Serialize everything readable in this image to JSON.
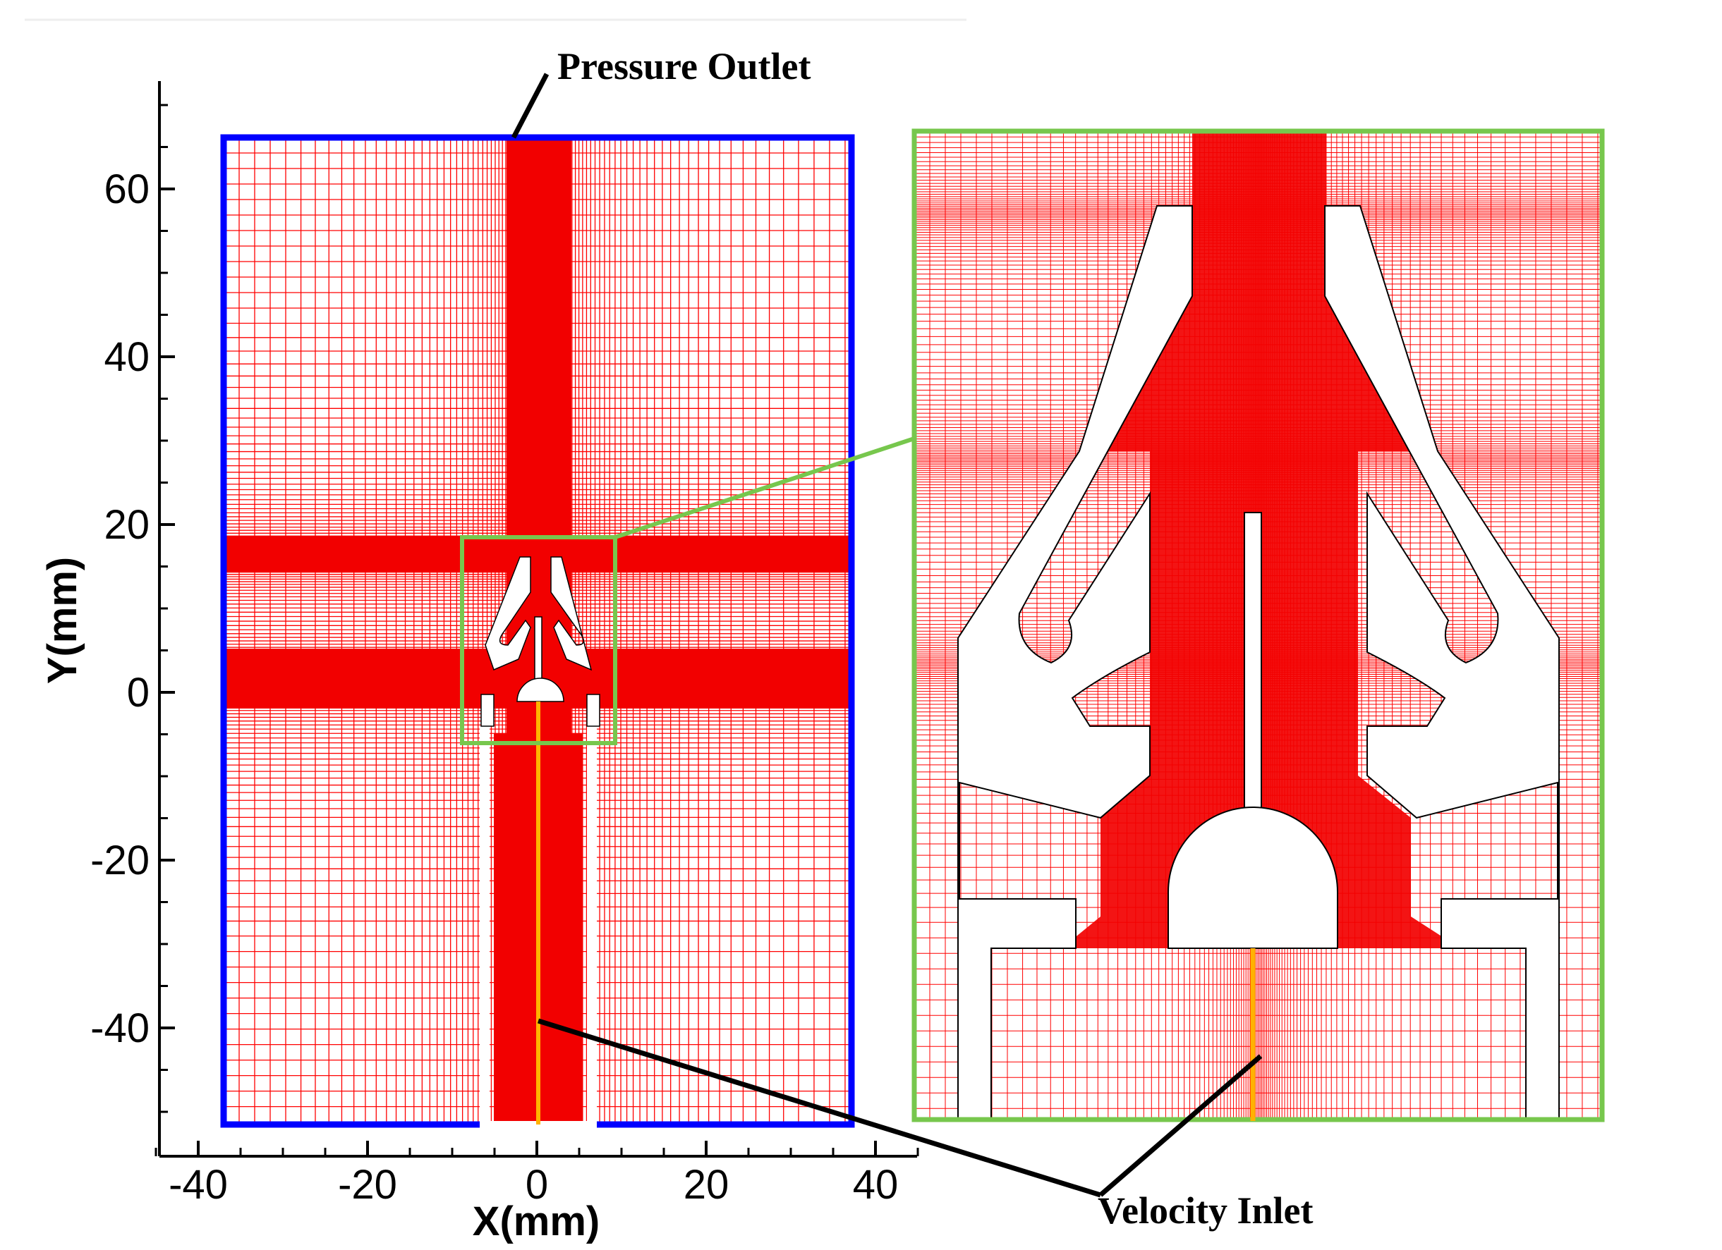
{
  "annotations": {
    "top": "Pressure Outlet",
    "bottom": "Velocity Inlet"
  },
  "colors": {
    "mesh": "#ff0000",
    "mesh_dense": "#f20000",
    "domain_boundary": "#0000ff",
    "zoom_frame": "#77c74d",
    "inlet_line": "#ffb300",
    "axis": "#000000"
  },
  "chart_data": {
    "type": "mesh",
    "xlabel": "X(mm)",
    "ylabel": "Y(mm)",
    "xlim": [
      -45,
      45
    ],
    "ylim": [
      -55,
      72
    ],
    "xticks": [
      -40,
      -20,
      0,
      20,
      40
    ],
    "yticks": [
      60,
      40,
      20,
      0,
      -20,
      -40
    ],
    "domain": {
      "x": [
        -37,
        37
      ],
      "y": [
        -51,
        66
      ]
    },
    "zoom_region": {
      "x": [
        -9,
        9
      ],
      "y": [
        -6,
        18
      ]
    },
    "refinement_bands": {
      "vertical": [
        [
          -4,
          4
        ]
      ],
      "horizontal": [
        [
          14,
          18
        ],
        [
          0,
          4
        ]
      ]
    }
  }
}
